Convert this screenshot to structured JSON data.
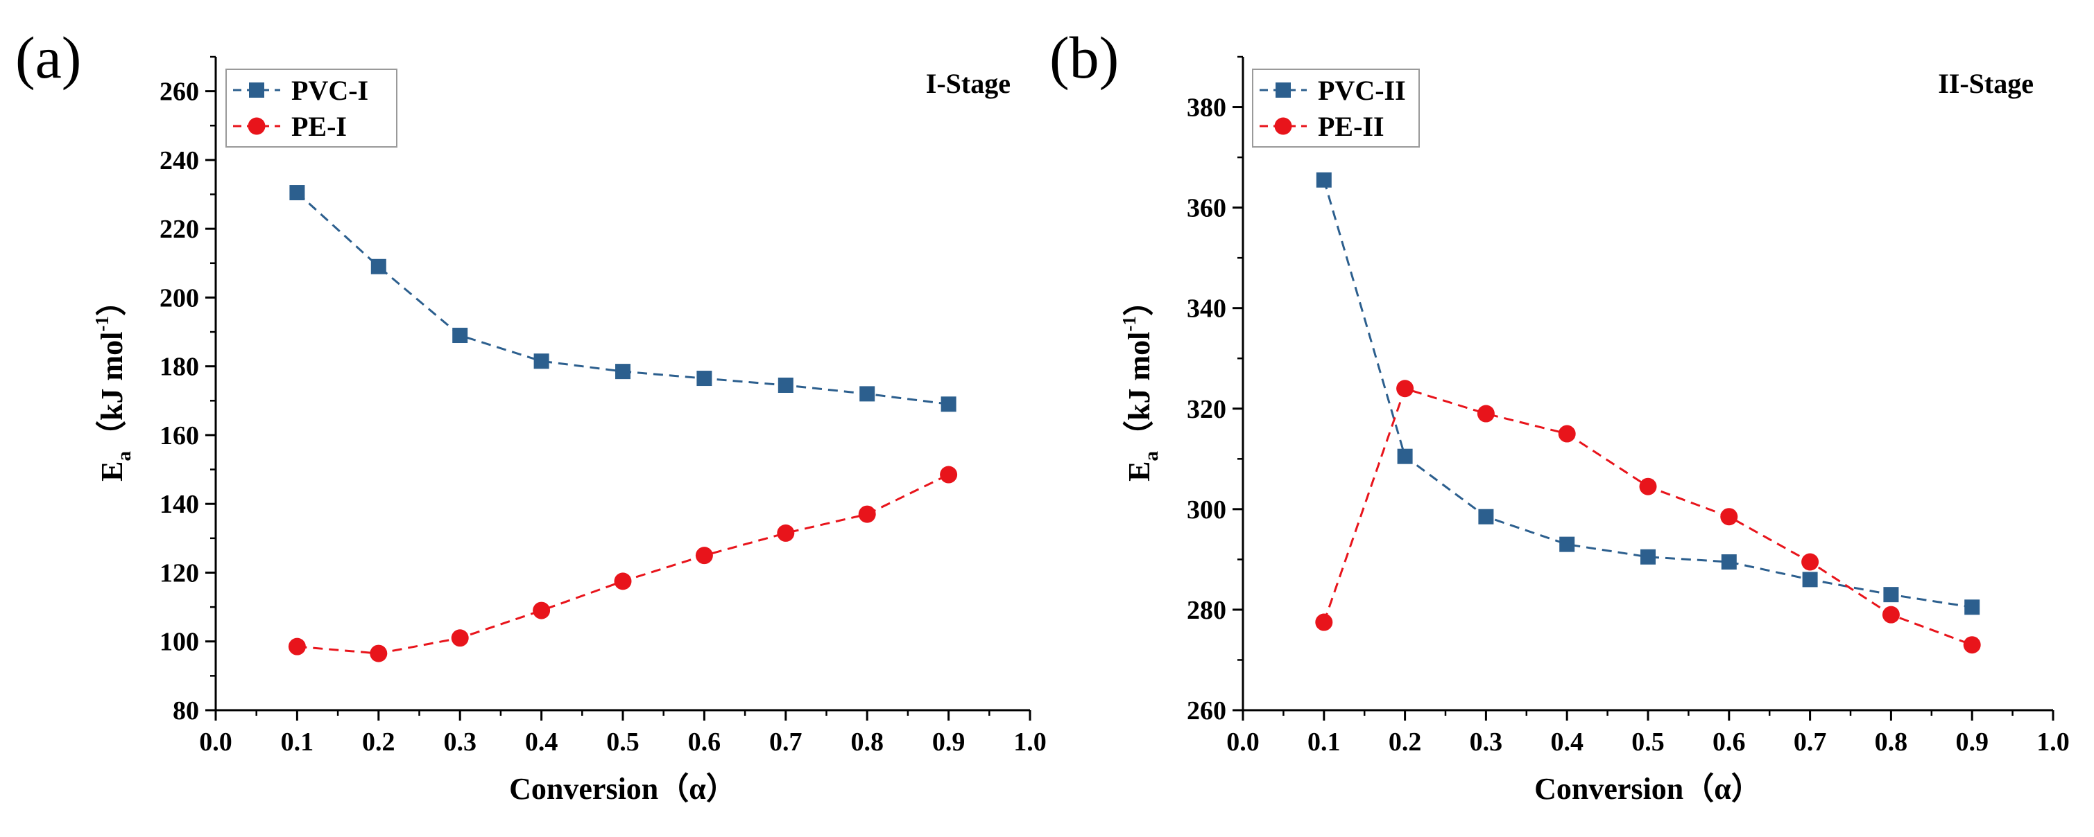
{
  "figure": {
    "background": "#ffffff"
  },
  "chart_data": [
    {
      "type": "line",
      "panel_label": "(a)",
      "stage_label": "I-Stage",
      "xlabel": "Conversion（α）",
      "ylabel": {
        "main": "E",
        "sub": "a",
        "unit": "（kJ mol",
        "sup": "-1",
        "close": "）"
      },
      "xlim": [
        0.0,
        1.0
      ],
      "ylim": [
        80,
        270
      ],
      "xticks": [
        "0.0",
        "0.1",
        "0.2",
        "0.3",
        "0.4",
        "0.5",
        "0.6",
        "0.7",
        "0.8",
        "0.9",
        "1.0"
      ],
      "yticks": [
        "80",
        "100",
        "120",
        "140",
        "160",
        "180",
        "200",
        "220",
        "240",
        "260"
      ],
      "legend_position": "top-left",
      "x": [
        0.1,
        0.2,
        0.3,
        0.4,
        0.5,
        0.6,
        0.7,
        0.8,
        0.9
      ],
      "series": [
        {
          "name": "PVC-I",
          "marker": "square",
          "color": "#2c5f8e",
          "values": [
            230.5,
            209,
            189,
            181.5,
            178.5,
            176.5,
            174.5,
            172,
            169
          ]
        },
        {
          "name": "PE-I",
          "marker": "circle",
          "color": "#e8141b",
          "values": [
            98.5,
            96.5,
            101,
            109,
            117.5,
            125,
            131.5,
            137,
            148.5
          ]
        }
      ]
    },
    {
      "type": "line",
      "panel_label": "(b)",
      "stage_label": "II-Stage",
      "xlabel": "Conversion（α）",
      "ylabel": {
        "main": "E",
        "sub": "a",
        "unit": "（kJ mol",
        "sup": "-1",
        "close": "）"
      },
      "xlim": [
        0.0,
        1.0
      ],
      "ylim": [
        260,
        390
      ],
      "xticks": [
        "0.0",
        "0.1",
        "0.2",
        "0.3",
        "0.4",
        "0.5",
        "0.6",
        "0.7",
        "0.8",
        "0.9",
        "1.0"
      ],
      "yticks": [
        "260",
        "280",
        "300",
        "320",
        "340",
        "360",
        "380"
      ],
      "legend_position": "top-left",
      "x": [
        0.1,
        0.2,
        0.3,
        0.4,
        0.5,
        0.6,
        0.7,
        0.8,
        0.9
      ],
      "series": [
        {
          "name": "PVC-II",
          "marker": "square",
          "color": "#2c5f8e",
          "values": [
            365.5,
            310.5,
            298.5,
            293,
            290.5,
            289.5,
            286,
            283,
            280.5
          ]
        },
        {
          "name": "PE-II",
          "marker": "circle",
          "color": "#e8141b",
          "values": [
            277.5,
            324,
            319,
            315,
            304.5,
            298.5,
            289.5,
            279,
            273
          ]
        }
      ]
    }
  ]
}
